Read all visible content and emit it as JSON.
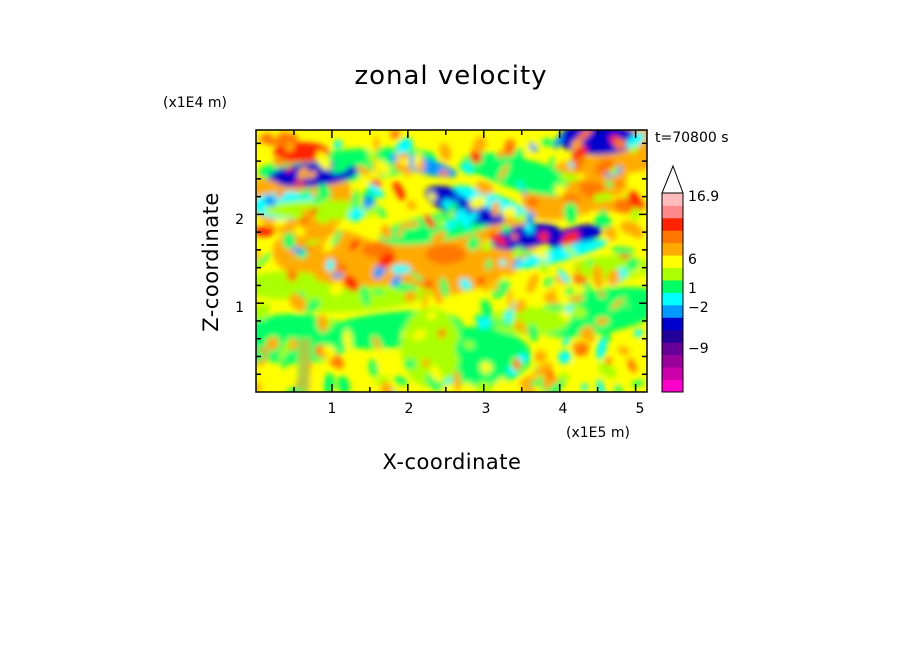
{
  "chart_data": {
    "type": "heatmap",
    "title": "zonal velocity",
    "xlabel": "X-coordinate",
    "ylabel": "Z-coordinate",
    "x_unit": "(x1E5 m)",
    "y_unit": "(x1E4 m)",
    "time_label": "t=70800 s",
    "xlim": [
      0,
      5.15
    ],
    "ylim": [
      0,
      2.95
    ],
    "x_ticks": [
      "1",
      "2",
      "3",
      "4",
      "5"
    ],
    "y_ticks": [
      "1",
      "2"
    ],
    "colorbar": {
      "levels": [
        -15,
        -12,
        -9,
        -6,
        -4,
        -2,
        -1,
        0,
        1,
        2,
        4,
        6,
        9,
        12,
        16.9
      ],
      "colors": [
        "#ff00cc",
        "#cc00aa",
        "#990099",
        "#660099",
        "#220099",
        "#0000cc",
        "#0099ff",
        "#00ffff",
        "#00ff66",
        "#aaff00",
        "#ffff00",
        "#ffaa00",
        "#ff7700",
        "#ff2200",
        "#ff8888",
        "#ffbbbb"
      ],
      "labels": [
        "16.9",
        "6",
        "1",
        "−2",
        "−9"
      ]
    }
  }
}
